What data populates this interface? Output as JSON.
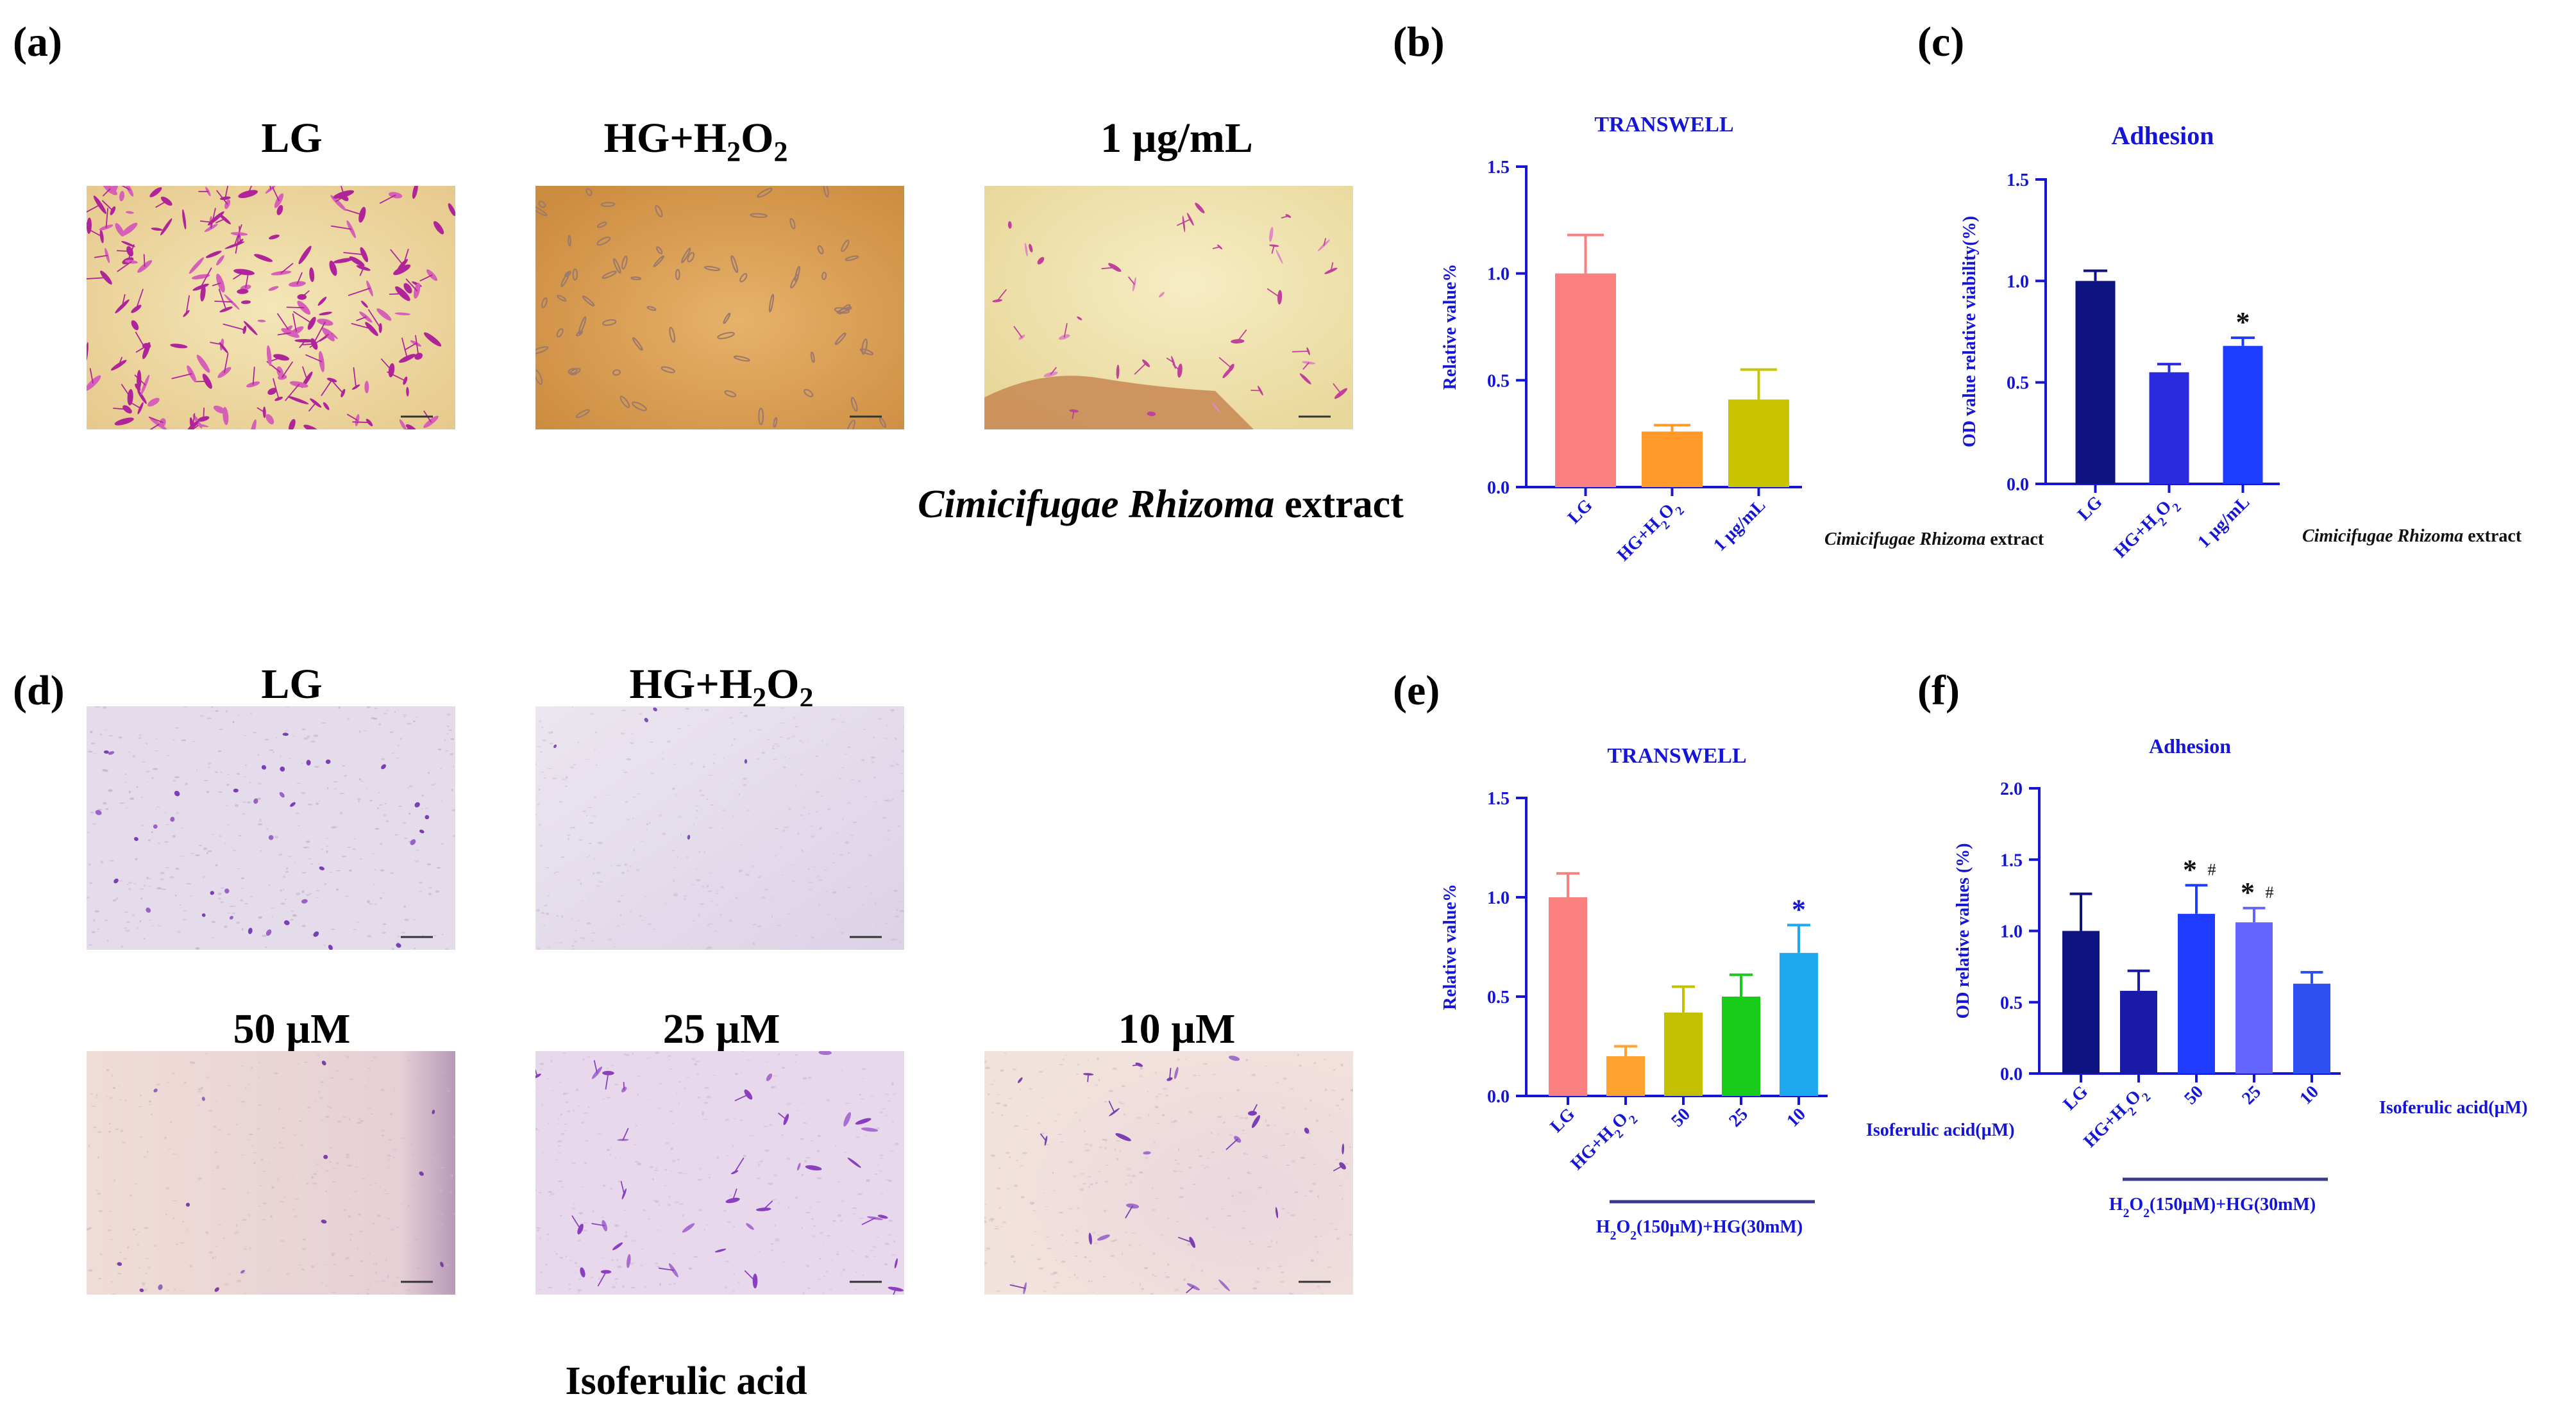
{
  "panel_labels": {
    "a": "(a)",
    "b": "(b)",
    "c": "(c)",
    "d": "(d)",
    "e": "(e)",
    "f": "(f)"
  },
  "image_titles": {
    "a_lg": "LG",
    "a_hg_prefix": "HG+H",
    "a_hg_sub1": "2",
    "a_hg_mid": "O",
    "a_hg_sub2": "2",
    "a_dose": "1 µg/mL",
    "d_lg": "LG",
    "d_hg_prefix": "HG+H",
    "d_hg_sub1": "2",
    "d_hg_mid": "O",
    "d_hg_sub2": "2",
    "d_50": "50 µM",
    "d_25": "25 µM",
    "d_10": "10 µM"
  },
  "captions": {
    "a_italic": "Cimicifugae Rhizoma",
    "a_rest": " extract",
    "d": "Isoferulic acid"
  },
  "colors": {
    "lg": "#FA8080",
    "hg_b": "#FF9A2A",
    "dose_b": "#C8C400",
    "navy": "#0D1380",
    "blue_mid": "#2B2BE0",
    "blue": "#1E3CFF",
    "hg_e": "#FFA230",
    "olive": "#C2C000",
    "green": "#19CC19",
    "sky": "#1EA8F0",
    "f_hg": "#1A1AA8",
    "f_50": "#1F3BFF",
    "f_25": "#6464FF",
    "f_10": "#2E50F2",
    "axis_blue": "#1515D6"
  },
  "chart_data": [
    {
      "id": "b",
      "type": "bar",
      "title": "TRANSWELL",
      "ylabel": "Relative value%",
      "ylim": [
        0,
        1.5
      ],
      "yticks": [
        "0.0",
        "0.5",
        "1.0",
        "1.5"
      ],
      "categories": [
        "LG",
        "HG+H2O2",
        "1 µg/mL"
      ],
      "values": [
        1.0,
        0.26,
        0.41
      ],
      "errors": [
        0.18,
        0.03,
        0.14
      ],
      "annotations": [
        "",
        "",
        ""
      ],
      "group_label_italic": "Cimicifugae Rhizoma",
      "group_label_rest": " extract"
    },
    {
      "id": "c",
      "type": "bar",
      "title": "Adhesion",
      "ylabel": "OD value relative viability(%)",
      "ylim": [
        0,
        1.5
      ],
      "yticks": [
        "0.0",
        "0.5",
        "1.0",
        "1.5"
      ],
      "categories": [
        "LG",
        "HG+H2O2",
        "1 µg/mL"
      ],
      "values": [
        1.0,
        0.55,
        0.68
      ],
      "errors": [
        0.05,
        0.04,
        0.04
      ],
      "annotations": [
        "",
        "",
        "*"
      ],
      "group_label_italic": "Cimicifugae Rhizoma",
      "group_label_rest": " extract"
    },
    {
      "id": "e",
      "type": "bar",
      "title": "TRANSWELL",
      "ylabel": "Relative value%",
      "ylim": [
        0,
        1.5
      ],
      "yticks": [
        "0.0",
        "0.5",
        "1.0",
        "1.5"
      ],
      "categories": [
        "LG",
        "HG+H2O2",
        "50",
        "25",
        "10"
      ],
      "values": [
        1.0,
        0.2,
        0.42,
        0.5,
        0.72
      ],
      "errors": [
        0.12,
        0.05,
        0.13,
        0.11,
        0.14
      ],
      "annotations": [
        "",
        "",
        "",
        "",
        "*"
      ],
      "group_label": "Isoferulic acid(µM)",
      "bracket_label": "H2O2(150µM)+HG(30mM)"
    },
    {
      "id": "f",
      "type": "bar",
      "title": "Adhesion",
      "ylabel": "OD relative values (%)",
      "ylim": [
        0,
        2.0
      ],
      "yticks": [
        "0.0",
        "0.5",
        "1.0",
        "1.5",
        "2.0"
      ],
      "categories": [
        "LG",
        "HG+H2O2",
        "50",
        "25",
        "10"
      ],
      "values": [
        1.0,
        0.58,
        1.12,
        1.06,
        0.63
      ],
      "errors": [
        0.26,
        0.14,
        0.2,
        0.1,
        0.08
      ],
      "annotations": [
        "",
        "",
        "* #",
        "* #",
        ""
      ],
      "group_label": "Isoferulic acid(µM)",
      "bracket_label": "H2O2(150µM)+HG(30mM)"
    }
  ]
}
